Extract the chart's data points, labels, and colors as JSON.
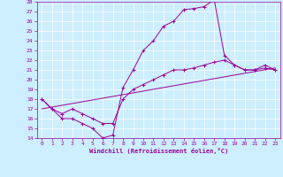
{
  "xlabel": "Windchill (Refroidissement éolien,°C)",
  "bg_color": "#cceeff",
  "line_color": "#990099",
  "xlim": [
    -0.5,
    23.5
  ],
  "ylim": [
    14,
    28
  ],
  "xticks": [
    0,
    1,
    2,
    3,
    4,
    5,
    6,
    7,
    8,
    9,
    10,
    11,
    12,
    13,
    14,
    15,
    16,
    17,
    18,
    19,
    20,
    21,
    22,
    23
  ],
  "yticks": [
    14,
    15,
    16,
    17,
    18,
    19,
    20,
    21,
    22,
    23,
    24,
    25,
    26,
    27,
    28
  ],
  "curve1_x": [
    0,
    1,
    2,
    3,
    4,
    5,
    6,
    7,
    8,
    9,
    10,
    11,
    12,
    13,
    14,
    15,
    16,
    17,
    18,
    19,
    20,
    21,
    22,
    23
  ],
  "curve1_y": [
    18,
    17,
    16,
    16,
    15.5,
    15,
    14,
    14.3,
    19.2,
    21,
    23,
    24,
    25.5,
    26,
    27.2,
    27.3,
    27.5,
    28.2,
    22.5,
    21.5,
    21,
    21,
    21.5,
    21
  ],
  "curve2_x": [
    0,
    1,
    2,
    3,
    4,
    5,
    6,
    7,
    8,
    9,
    10,
    11,
    12,
    13,
    14,
    15,
    16,
    17,
    18,
    19,
    20,
    21,
    22,
    23
  ],
  "curve2_y": [
    18,
    17,
    16.5,
    17,
    16.5,
    16,
    15.5,
    15.5,
    18,
    19,
    19.5,
    20,
    20.5,
    21,
    21,
    21.2,
    21.5,
    21.8,
    22,
    21.5,
    21,
    21,
    21.2,
    21
  ],
  "curve3_x": [
    0,
    23
  ],
  "curve3_y": [
    17,
    21.2
  ]
}
